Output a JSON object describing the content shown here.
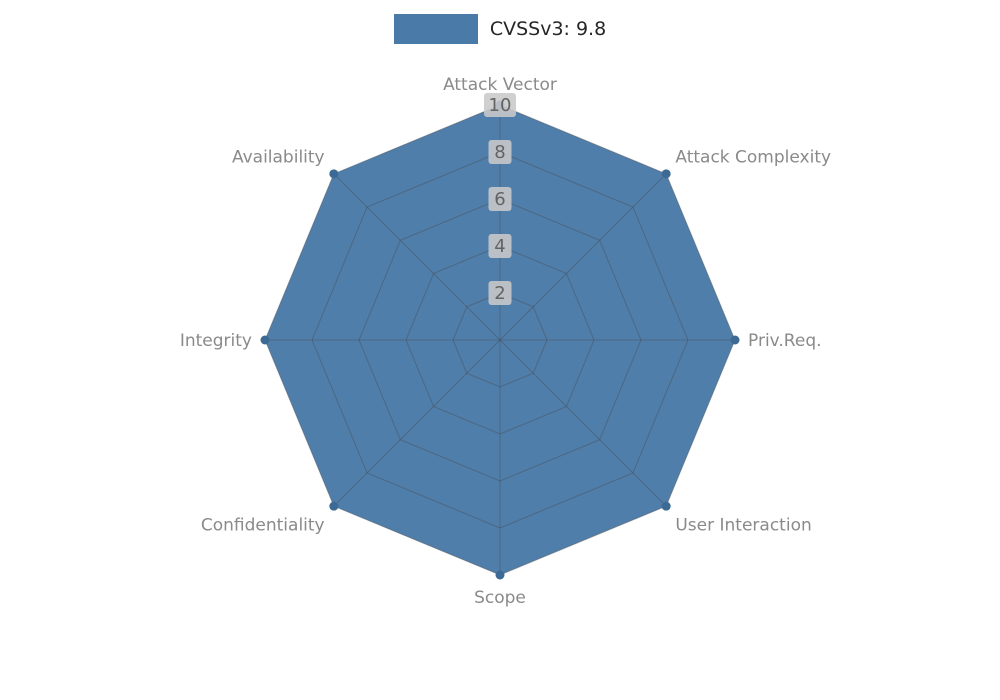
{
  "legend": {
    "label": "CVSSv3: 9.8",
    "color": "#4a7aa7"
  },
  "chart_data": {
    "type": "radar",
    "title": "CVSSv3: 9.8",
    "categories": [
      "Attack Vector",
      "Attack Complexity",
      "Priv.Req.",
      "User Interaction",
      "Scope",
      "Confidentiality",
      "Integrity",
      "Availability"
    ],
    "series": [
      {
        "name": "CVSSv3: 9.8",
        "values": [
          10,
          10,
          10,
          10,
          10,
          10,
          10,
          10
        ],
        "color": "#4a7aa7"
      }
    ],
    "ticks": [
      2,
      4,
      6,
      8,
      10
    ],
    "rmax": 10,
    "grid": true,
    "grid_color": "#444444",
    "marker_color": "#3c6a94",
    "tick_box_color": "#c9c9c9",
    "tick_text_color": "#636363",
    "axis_label_color": "#8a8a8a",
    "legend_position": "top"
  }
}
